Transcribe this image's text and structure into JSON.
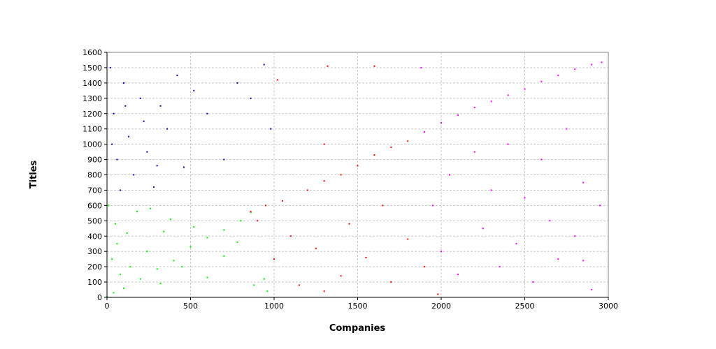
{
  "chart_data": {
    "type": "scatter",
    "title": "",
    "xlabel": "Companies",
    "ylabel": "Titles",
    "xlim": [
      0,
      3000
    ],
    "ylim": [
      0,
      1600
    ],
    "xticks": [
      0,
      500,
      1000,
      1500,
      2000,
      2500,
      3000
    ],
    "yticks": [
      0,
      100,
      200,
      300,
      400,
      500,
      600,
      700,
      800,
      900,
      1000,
      1100,
      1200,
      1300,
      1400,
      1500,
      1600
    ],
    "grid": true,
    "legend": "none",
    "series": [
      {
        "color": "#00ee00",
        "points": [
          [
            0,
            2
          ],
          [
            40,
            30
          ],
          [
            100,
            60
          ],
          [
            200,
            120
          ],
          [
            300,
            185
          ],
          [
            400,
            240
          ],
          [
            500,
            330
          ],
          [
            600,
            390
          ],
          [
            700,
            440
          ],
          [
            800,
            500
          ],
          [
            860,
            555
          ],
          [
            10,
            600
          ],
          [
            30,
            250
          ],
          [
            50,
            480
          ],
          [
            80,
            150
          ],
          [
            120,
            420
          ],
          [
            180,
            560
          ],
          [
            240,
            300
          ],
          [
            320,
            90
          ],
          [
            380,
            510
          ],
          [
            450,
            200
          ],
          [
            520,
            460
          ],
          [
            600,
            130
          ],
          [
            700,
            270
          ],
          [
            780,
            360
          ],
          [
            880,
            80
          ],
          [
            940,
            120
          ],
          [
            960,
            40
          ],
          [
            60,
            350
          ],
          [
            140,
            200
          ],
          [
            260,
            580
          ],
          [
            340,
            430
          ]
        ]
      },
      {
        "color": "#ff0000",
        "points": [
          [
            860,
            560
          ],
          [
            950,
            600
          ],
          [
            1050,
            630
          ],
          [
            1200,
            700
          ],
          [
            1300,
            760
          ],
          [
            1400,
            800
          ],
          [
            1500,
            860
          ],
          [
            1600,
            930
          ],
          [
            1700,
            980
          ],
          [
            1800,
            1020
          ],
          [
            1900,
            1080
          ],
          [
            900,
            500
          ],
          [
            1000,
            250
          ],
          [
            1100,
            400
          ],
          [
            1150,
            80
          ],
          [
            1250,
            320
          ],
          [
            1300,
            40
          ],
          [
            1400,
            140
          ],
          [
            1450,
            480
          ],
          [
            1550,
            260
          ],
          [
            1650,
            600
          ],
          [
            1700,
            100
          ],
          [
            1800,
            380
          ],
          [
            1900,
            200
          ],
          [
            1980,
            20
          ],
          [
            1320,
            1510
          ],
          [
            1600,
            1510
          ],
          [
            1020,
            1420
          ],
          [
            1300,
            1000
          ]
        ]
      },
      {
        "color": "#0000aa",
        "points": [
          [
            20,
            1500
          ],
          [
            40,
            1200
          ],
          [
            60,
            900
          ],
          [
            80,
            700
          ],
          [
            100,
            1400
          ],
          [
            130,
            1050
          ],
          [
            160,
            800
          ],
          [
            200,
            1300
          ],
          [
            240,
            950
          ],
          [
            280,
            720
          ],
          [
            320,
            1250
          ],
          [
            360,
            1100
          ],
          [
            420,
            1450
          ],
          [
            460,
            850
          ],
          [
            520,
            1350
          ],
          [
            600,
            1200
          ],
          [
            700,
            900
          ],
          [
            780,
            1400
          ],
          [
            860,
            1300
          ],
          [
            940,
            1520
          ],
          [
            980,
            1100
          ],
          [
            30,
            1000
          ],
          [
            110,
            1250
          ],
          [
            220,
            1150
          ],
          [
            300,
            860
          ]
        ]
      },
      {
        "color": "#ff00ff",
        "points": [
          [
            1900,
            1080
          ],
          [
            2000,
            1140
          ],
          [
            2100,
            1190
          ],
          [
            2200,
            1240
          ],
          [
            2300,
            1280
          ],
          [
            2400,
            1320
          ],
          [
            2500,
            1360
          ],
          [
            2600,
            1410
          ],
          [
            2700,
            1450
          ],
          [
            2800,
            1490
          ],
          [
            2900,
            1520
          ],
          [
            2960,
            1535
          ],
          [
            1880,
            1500
          ],
          [
            1950,
            600
          ],
          [
            2000,
            300
          ],
          [
            2050,
            800
          ],
          [
            2100,
            150
          ],
          [
            2200,
            950
          ],
          [
            2250,
            450
          ],
          [
            2300,
            700
          ],
          [
            2350,
            200
          ],
          [
            2400,
            1000
          ],
          [
            2450,
            350
          ],
          [
            2500,
            650
          ],
          [
            2550,
            100
          ],
          [
            2600,
            900
          ],
          [
            2650,
            500
          ],
          [
            2700,
            250
          ],
          [
            2750,
            1100
          ],
          [
            2800,
            400
          ],
          [
            2850,
            750
          ],
          [
            2900,
            50
          ],
          [
            2950,
            600
          ],
          [
            2850,
            240
          ]
        ]
      }
    ]
  }
}
